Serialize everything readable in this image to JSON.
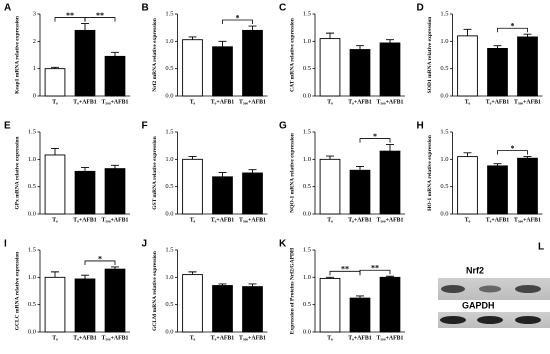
{
  "chart_data": [
    {
      "panel": "A",
      "type": "bar",
      "ylabel": "Keap1 mRNA relative expression",
      "categories": [
        "T₀",
        "T₀+AFB1",
        "T₅₀₀+AFB1"
      ],
      "values": [
        1.0,
        2.4,
        1.45
      ],
      "errors": [
        0.05,
        0.25,
        0.15
      ],
      "colors": [
        "#ffffff",
        "#000000",
        "#000000"
      ],
      "ylim": [
        0,
        3
      ],
      "yticks": [
        0,
        1,
        2,
        3
      ],
      "significance": [
        {
          "label": "**",
          "pair": [
            "T₀",
            "T₀+AFB1"
          ]
        },
        {
          "label": "**",
          "pair": [
            "T₀+AFB1",
            "T₅₀₀+AFB1"
          ]
        }
      ]
    },
    {
      "panel": "B",
      "type": "bar",
      "ylabel": "Nrf2 mRNA relative expression",
      "categories": [
        "T₀",
        "T₀+AFB1",
        "T₅₀₀+AFB1"
      ],
      "values": [
        1.03,
        0.9,
        1.2
      ],
      "errors": [
        0.05,
        0.1,
        0.08
      ],
      "colors": [
        "#ffffff",
        "#000000",
        "#000000"
      ],
      "ylim": [
        0,
        1.5
      ],
      "yticks": [
        {
          "value": 0,
          "label": "0.0"
        },
        {
          "value": 0.5,
          "label": "0.5"
        },
        {
          "value": 1,
          "label": "1.0"
        },
        {
          "value": 1.5,
          "label": "1.5"
        }
      ],
      "significance": [
        {
          "label": "*",
          "pair": [
            "T₀+AFB1",
            "T₅₀₀+AFB1"
          ]
        }
      ]
    },
    {
      "panel": "C",
      "type": "bar",
      "ylabel": "CAT mRNA relative expression",
      "categories": [
        "T₀",
        "T₀+AFB1",
        "T₅₀₀+AFB1"
      ],
      "values": [
        1.05,
        0.85,
        0.97
      ],
      "errors": [
        0.1,
        0.07,
        0.06
      ],
      "colors": [
        "#ffffff",
        "#000000",
        "#000000"
      ],
      "ylim": [
        0,
        1.5
      ],
      "yticks": [
        {
          "value": 0,
          "label": "0.0"
        },
        {
          "value": 0.5,
          "label": "0.5"
        },
        {
          "value": 1,
          "label": "1.0"
        },
        {
          "value": 1.5,
          "label": "1.5"
        }
      ],
      "significance": []
    },
    {
      "panel": "D",
      "type": "bar",
      "ylabel": "SOD1 mRNA relative expression",
      "categories": [
        "T₀",
        "T₀+AFB1",
        "T₅₀₀+AFB1"
      ],
      "values": [
        1.1,
        0.87,
        1.08
      ],
      "errors": [
        0.12,
        0.05,
        0.05
      ],
      "colors": [
        "#ffffff",
        "#000000",
        "#000000"
      ],
      "ylim": [
        0,
        1.5
      ],
      "yticks": [
        {
          "value": 0,
          "label": "0.0"
        },
        {
          "value": 0.5,
          "label": "0.5"
        },
        {
          "value": 1,
          "label": "1.0"
        },
        {
          "value": 1.5,
          "label": "1.5"
        }
      ],
      "significance": [
        {
          "label": "*",
          "pair": [
            "T₀+AFB1",
            "T₅₀₀+AFB1"
          ]
        }
      ]
    },
    {
      "panel": "E",
      "type": "bar",
      "ylabel": "GPx mRNA relative expression",
      "categories": [
        "T₀",
        "T₀+AFB1",
        "T₅₀₀+AFB1"
      ],
      "values": [
        1.08,
        0.78,
        0.83
      ],
      "errors": [
        0.12,
        0.07,
        0.06
      ],
      "colors": [
        "#ffffff",
        "#000000",
        "#000000"
      ],
      "ylim": [
        0,
        1.5
      ],
      "yticks": [
        {
          "value": 0,
          "label": "0.0"
        },
        {
          "value": 0.5,
          "label": "0.5"
        },
        {
          "value": 1,
          "label": "1.0"
        },
        {
          "value": 1.5,
          "label": "1.5"
        }
      ],
      "significance": []
    },
    {
      "panel": "F",
      "type": "bar",
      "ylabel": "GST mRNA relative expression",
      "categories": [
        "T₀",
        "T₀+AFB1",
        "T₅₀₀+AFB1"
      ],
      "values": [
        1.0,
        0.68,
        0.75
      ],
      "errors": [
        0.05,
        0.08,
        0.06
      ],
      "colors": [
        "#ffffff",
        "#000000",
        "#000000"
      ],
      "ylim": [
        0,
        1.5
      ],
      "yticks": [
        {
          "value": 0,
          "label": "0.0"
        },
        {
          "value": 0.5,
          "label": "0.5"
        },
        {
          "value": 1,
          "label": "1.0"
        },
        {
          "value": 1.5,
          "label": "1.5"
        }
      ],
      "significance": []
    },
    {
      "panel": "G",
      "type": "bar",
      "ylabel": "NQO-1 mRNA relative expression",
      "categories": [
        "T₀",
        "T₀+AFB1",
        "T₅₀₀+AFB1"
      ],
      "values": [
        1.0,
        0.8,
        1.15
      ],
      "errors": [
        0.06,
        0.07,
        0.12
      ],
      "colors": [
        "#ffffff",
        "#000000",
        "#000000"
      ],
      "ylim": [
        0,
        1.5
      ],
      "yticks": [
        {
          "value": 0,
          "label": "0.0"
        },
        {
          "value": 0.5,
          "label": "0.5"
        },
        {
          "value": 1,
          "label": "1.0"
        },
        {
          "value": 1.5,
          "label": "1.5"
        }
      ],
      "significance": [
        {
          "label": "*",
          "pair": [
            "T₀+AFB1",
            "T₅₀₀+AFB1"
          ]
        }
      ]
    },
    {
      "panel": "H",
      "type": "bar",
      "ylabel": "HO-1 mRNA relative expression",
      "categories": [
        "T₀",
        "T₀+AFB1",
        "T₅₀₀+AFB1"
      ],
      "values": [
        1.05,
        0.88,
        1.02
      ],
      "errors": [
        0.07,
        0.04,
        0.03
      ],
      "colors": [
        "#ffffff",
        "#000000",
        "#000000"
      ],
      "ylim": [
        0,
        1.5
      ],
      "yticks": [
        {
          "value": 0,
          "label": "0.0"
        },
        {
          "value": 0.5,
          "label": "0.5"
        },
        {
          "value": 1,
          "label": "1.0"
        },
        {
          "value": 1.5,
          "label": "1.5"
        }
      ],
      "significance": [
        {
          "label": "*",
          "pair": [
            "T₀+AFB1",
            "T₅₀₀+AFB1"
          ]
        }
      ]
    },
    {
      "panel": "I",
      "type": "bar",
      "ylabel": "GCLC mRNA relative expression",
      "categories": [
        "T₀",
        "T₀+AFB1",
        "T₅₀₀+AFB1"
      ],
      "values": [
        1.0,
        0.97,
        1.15
      ],
      "errors": [
        0.1,
        0.07,
        0.04
      ],
      "colors": [
        "#ffffff",
        "#000000",
        "#000000"
      ],
      "ylim": [
        0,
        1.5
      ],
      "yticks": [
        {
          "value": 0,
          "label": "0.0"
        },
        {
          "value": 0.5,
          "label": "0.5"
        },
        {
          "value": 1,
          "label": "1.0"
        },
        {
          "value": 1.5,
          "label": "1.5"
        }
      ],
      "significance": [
        {
          "label": "*",
          "pair": [
            "T₀+AFB1",
            "T₅₀₀+AFB1"
          ]
        }
      ]
    },
    {
      "panel": "J",
      "type": "bar",
      "ylabel": "GCLM mRNA relative expression",
      "categories": [
        "T₀",
        "T₀+AFB1",
        "T₅₀₀+AFB1"
      ],
      "values": [
        1.05,
        0.85,
        0.83
      ],
      "errors": [
        0.05,
        0.03,
        0.05
      ],
      "colors": [
        "#ffffff",
        "#000000",
        "#000000"
      ],
      "ylim": [
        0,
        1.5
      ],
      "yticks": [
        {
          "value": 0,
          "label": "0.0"
        },
        {
          "value": 0.5,
          "label": "0.5"
        },
        {
          "value": 1,
          "label": "1.0"
        },
        {
          "value": 1.5,
          "label": "1.5"
        }
      ],
      "significance": []
    },
    {
      "panel": "K",
      "type": "bar",
      "ylabel": "Expression of Proteins Nrf2/GAPDH",
      "categories": [
        "T₀",
        "T₀+AFB1",
        "T₅₀₀+AFB1"
      ],
      "values": [
        0.98,
        0.62,
        1.0
      ],
      "errors": [
        0.02,
        0.04,
        0.02
      ],
      "colors": [
        "#ffffff",
        "#000000",
        "#000000"
      ],
      "ylim": [
        0,
        1.5
      ],
      "yticks": [
        {
          "value": 0,
          "label": "0.0"
        },
        {
          "value": 0.5,
          "label": "0.5"
        },
        {
          "value": 1,
          "label": "1.0"
        },
        {
          "value": 1.5,
          "label": "1.5"
        }
      ],
      "significance": [
        {
          "label": "**",
          "pair": [
            "T₀",
            "T₀+AFB1"
          ]
        },
        {
          "label": "**",
          "pair": [
            "T₀+AFB1",
            "T₅₀₀+AFB1"
          ]
        }
      ]
    }
  ],
  "blot": {
    "panel": "L",
    "labels": [
      "Nrf2",
      "GAPDH"
    ]
  }
}
